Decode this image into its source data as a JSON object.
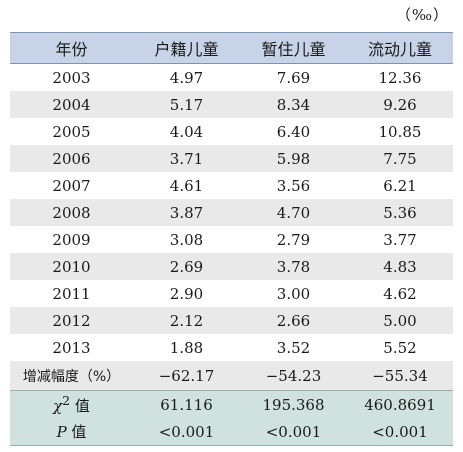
{
  "unit": "（‰）",
  "headers": [
    "年份",
    "户籍儿童",
    "暂住儿童",
    "流动儿童"
  ],
  "rows": [
    [
      "2003",
      "4.97",
      "7.69",
      "12.36"
    ],
    [
      "2004",
      "5.17",
      "8.34",
      "9.26"
    ],
    [
      "2005",
      "4.04",
      "6.40",
      "10.85"
    ],
    [
      "2006",
      "3.71",
      "5.98",
      "7.75"
    ],
    [
      "2007",
      "4.61",
      "3.56",
      "6.21"
    ],
    [
      "2008",
      "3.87",
      "4.70",
      "5.36"
    ],
    [
      "2009",
      "3.08",
      "2.79",
      "3.77"
    ],
    [
      "2010",
      "2.69",
      "3.78",
      "4.83"
    ],
    [
      "2011",
      "2.90",
      "3.00",
      "4.62"
    ],
    [
      "2012",
      "2.12",
      "2.66",
      "5.00"
    ],
    [
      "2013",
      "1.88",
      "3.52",
      "5.52"
    ]
  ],
  "change_row": {
    "label": "增减幅度（%）",
    "values": [
      "−62.17",
      "−54.23",
      "−55.34"
    ]
  },
  "chi_row": {
    "symbol": "χ",
    "sup": "2",
    "word": " 值",
    "values": [
      "61.116",
      "195.368",
      "460.8691"
    ]
  },
  "p_row": {
    "symbol": "P",
    "word": " 值",
    "values": [
      "<0.001",
      "<0.001",
      "<0.001"
    ]
  },
  "colors": {
    "header_bg": "#c7d3e6",
    "stripe_bg": "#e9e9e9",
    "stats_bg": "#cfe2de"
  }
}
